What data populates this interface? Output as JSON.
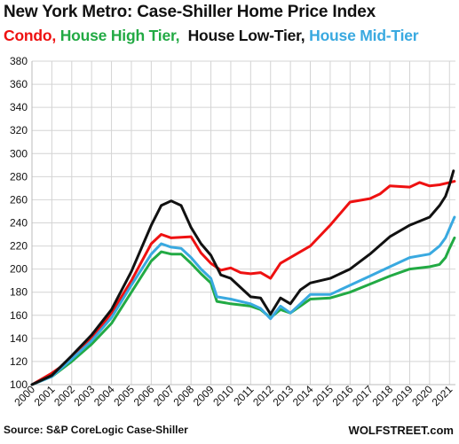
{
  "title": "New York Metro: Case-Shiller Home Price Index",
  "legend": [
    {
      "text": "Condo,",
      "color": "#ee1111"
    },
    {
      "text": " House High Tier,",
      "color": "#22aa44"
    },
    {
      "text": "  House Low-Tier,",
      "color": "#111111"
    },
    {
      "text": " House Mid-Tier",
      "color": "#39a9e0"
    }
  ],
  "source": "Source: S&P CoreLogic Case-Shiller",
  "brand": "WOLFSTREET.com",
  "chart_data": {
    "type": "line",
    "title": "New York Metro: Case-Shiller Home Price Index",
    "xlabel": "",
    "ylabel": "",
    "xlim": [
      2000,
      2021.3
    ],
    "ylim": [
      100,
      380
    ],
    "yticks": [
      100,
      120,
      140,
      160,
      180,
      200,
      220,
      240,
      260,
      280,
      300,
      320,
      340,
      360,
      380
    ],
    "xticks": [
      "2000",
      "2001",
      "2002",
      "2003",
      "2004",
      "2005",
      "2006",
      "2007",
      "2008",
      "2009",
      "2010",
      "2011",
      "2012",
      "2013",
      "2014",
      "2015",
      "2016",
      "2017",
      "2018",
      "2019",
      "2020",
      "2021"
    ],
    "grid": true,
    "legend_position": "top (colored title text)",
    "series": [
      {
        "name": "Condo",
        "color": "#ee1111",
        "points": [
          [
            2000,
            100
          ],
          [
            2001,
            110
          ],
          [
            2002,
            122
          ],
          [
            2003,
            140
          ],
          [
            2004,
            162
          ],
          [
            2005,
            190
          ],
          [
            2006,
            222
          ],
          [
            2006.5,
            230
          ],
          [
            2007,
            227
          ],
          [
            2008,
            228
          ],
          [
            2008.5,
            214
          ],
          [
            2009,
            205
          ],
          [
            2009.5,
            199
          ],
          [
            2010,
            201
          ],
          [
            2010.5,
            197
          ],
          [
            2011,
            196
          ],
          [
            2011.5,
            197
          ],
          [
            2012,
            192
          ],
          [
            2012.5,
            205
          ],
          [
            2013,
            210
          ],
          [
            2014,
            220
          ],
          [
            2015,
            238
          ],
          [
            2016,
            258
          ],
          [
            2017,
            261
          ],
          [
            2017.5,
            265
          ],
          [
            2018,
            272
          ],
          [
            2019,
            271
          ],
          [
            2019.5,
            275
          ],
          [
            2020,
            272
          ],
          [
            2020.5,
            273
          ],
          [
            2021,
            275
          ],
          [
            2021.25,
            276
          ]
        ]
      },
      {
        "name": "House High Tier",
        "color": "#22aa44",
        "points": [
          [
            2000,
            100
          ],
          [
            2001,
            107
          ],
          [
            2002,
            120
          ],
          [
            2003,
            135
          ],
          [
            2004,
            153
          ],
          [
            2005,
            180
          ],
          [
            2006,
            207
          ],
          [
            2006.5,
            215
          ],
          [
            2007,
            213
          ],
          [
            2007.5,
            213
          ],
          [
            2008,
            205
          ],
          [
            2008.5,
            196
          ],
          [
            2009,
            188
          ],
          [
            2009.3,
            172
          ],
          [
            2010,
            170
          ],
          [
            2011,
            168
          ],
          [
            2011.5,
            165
          ],
          [
            2012,
            158
          ],
          [
            2012.5,
            165
          ],
          [
            2013,
            162
          ],
          [
            2013.5,
            168
          ],
          [
            2014,
            174
          ],
          [
            2015,
            175
          ],
          [
            2016,
            180
          ],
          [
            2017,
            187
          ],
          [
            2018,
            194
          ],
          [
            2019,
            200
          ],
          [
            2020,
            202
          ],
          [
            2020.5,
            204
          ],
          [
            2020.8,
            210
          ],
          [
            2021,
            218
          ],
          [
            2021.25,
            227
          ]
        ]
      },
      {
        "name": "House Low-Tier",
        "color": "#111111",
        "points": [
          [
            2000,
            100
          ],
          [
            2001,
            108
          ],
          [
            2002,
            125
          ],
          [
            2003,
            143
          ],
          [
            2004,
            165
          ],
          [
            2005,
            198
          ],
          [
            2006,
            238
          ],
          [
            2006.5,
            255
          ],
          [
            2007,
            259
          ],
          [
            2007.5,
            255
          ],
          [
            2008,
            236
          ],
          [
            2008.5,
            222
          ],
          [
            2009,
            212
          ],
          [
            2009.5,
            195
          ],
          [
            2010,
            192
          ],
          [
            2011,
            176
          ],
          [
            2011.5,
            175
          ],
          [
            2012,
            161
          ],
          [
            2012.5,
            175
          ],
          [
            2013,
            170
          ],
          [
            2013.5,
            182
          ],
          [
            2014,
            188
          ],
          [
            2015,
            192
          ],
          [
            2016,
            200
          ],
          [
            2017,
            213
          ],
          [
            2018,
            228
          ],
          [
            2019,
            238
          ],
          [
            2020,
            245
          ],
          [
            2020.5,
            255
          ],
          [
            2020.8,
            263
          ],
          [
            2021,
            273
          ],
          [
            2021.2,
            285
          ]
        ]
      },
      {
        "name": "House Mid-Tier",
        "color": "#39a9e0",
        "points": [
          [
            2000,
            100
          ],
          [
            2001,
            107
          ],
          [
            2002,
            122
          ],
          [
            2003,
            138
          ],
          [
            2004,
            158
          ],
          [
            2005,
            186
          ],
          [
            2006,
            213
          ],
          [
            2006.5,
            222
          ],
          [
            2007,
            219
          ],
          [
            2007.5,
            218
          ],
          [
            2008,
            210
          ],
          [
            2008.5,
            200
          ],
          [
            2009,
            192
          ],
          [
            2009.3,
            176
          ],
          [
            2010,
            174
          ],
          [
            2011,
            170
          ],
          [
            2011.5,
            166
          ],
          [
            2012,
            157
          ],
          [
            2012.5,
            168
          ],
          [
            2013,
            162
          ],
          [
            2013.5,
            170
          ],
          [
            2014,
            178
          ],
          [
            2015,
            178
          ],
          [
            2016,
            186
          ],
          [
            2017,
            194
          ],
          [
            2018,
            202
          ],
          [
            2019,
            210
          ],
          [
            2020,
            213
          ],
          [
            2020.5,
            220
          ],
          [
            2020.8,
            227
          ],
          [
            2021,
            235
          ],
          [
            2021.25,
            245
          ]
        ]
      }
    ]
  }
}
